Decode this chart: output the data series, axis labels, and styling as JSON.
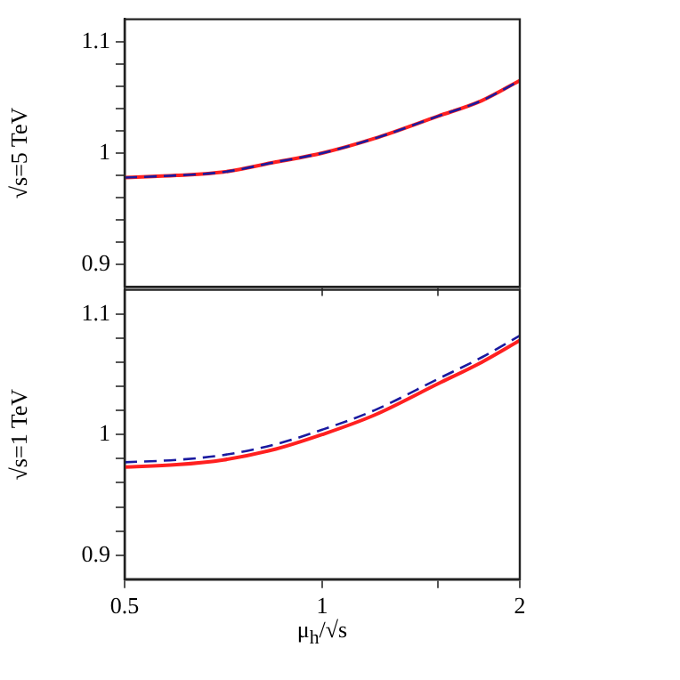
{
  "chart_data": [
    {
      "type": "line",
      "ylabel": "√s=5 TeV",
      "log": "x",
      "tick_labels": "y",
      "x": [
        0.5,
        0.6,
        0.707,
        0.85,
        1,
        1.2,
        1.5,
        1.75,
        2
      ],
      "xlim": [
        0.5,
        2
      ],
      "xticks": [
        0.5,
        1,
        {
          "value": 1.5,
          "label": null
        },
        2
      ],
      "ylim": [
        0.88,
        1.12
      ],
      "yticks": [
        0.9,
        {
          "value": 0.92,
          "label": null
        },
        {
          "value": 0.94,
          "label": null
        },
        {
          "value": 0.96,
          "label": null
        },
        {
          "value": 0.98,
          "label": null
        },
        1,
        {
          "value": 1.02,
          "label": null
        },
        {
          "value": 1.04,
          "label": null
        },
        {
          "value": 1.06,
          "label": null
        },
        {
          "value": 1.08,
          "label": null
        },
        1.1
      ],
      "series": [
        {
          "color": "#ff2020",
          "line_style": "solid",
          "values": [
            0.978,
            0.98,
            0.983,
            0.992,
            1.0,
            1.013,
            1.033,
            1.047,
            1.065
          ]
        },
        {
          "color": "#1a1aa0",
          "line_style": "dashed",
          "values": [
            0.978,
            0.98,
            0.983,
            0.992,
            1.0,
            1.013,
            1.033,
            1.047,
            1.065
          ]
        }
      ]
    },
    {
      "type": "line",
      "ylabel": "√s=1 TeV",
      "xlabel": "μ$_{h}$/√s",
      "log": "x",
      "x": [
        0.5,
        0.6,
        0.707,
        0.85,
        1,
        1.2,
        1.5,
        1.75,
        2
      ],
      "xlim": [
        0.5,
        2
      ],
      "xticks": [
        0.5,
        1,
        {
          "value": 1.5,
          "label": null
        },
        2
      ],
      "ylim": [
        0.88,
        1.12
      ],
      "yticks": [
        0.9,
        {
          "value": 0.92,
          "label": null
        },
        {
          "value": 0.94,
          "label": null
        },
        {
          "value": 0.96,
          "label": null
        },
        {
          "value": 0.98,
          "label": null
        },
        1,
        {
          "value": 1.02,
          "label": null
        },
        {
          "value": 1.04,
          "label": null
        },
        {
          "value": 1.06,
          "label": null
        },
        {
          "value": 1.08,
          "label": null
        },
        1.1
      ],
      "series": [
        {
          "color": "#ff2020",
          "line_style": "solid",
          "values": [
            0.973,
            0.975,
            0.979,
            0.988,
            1.0,
            1.016,
            1.042,
            1.06,
            1.078
          ]
        },
        {
          "color": "#1a1aa0",
          "line_style": "dashed",
          "values": [
            0.977,
            0.979,
            0.983,
            0.992,
            1.004,
            1.02,
            1.046,
            1.064,
            1.082
          ]
        }
      ]
    }
  ]
}
